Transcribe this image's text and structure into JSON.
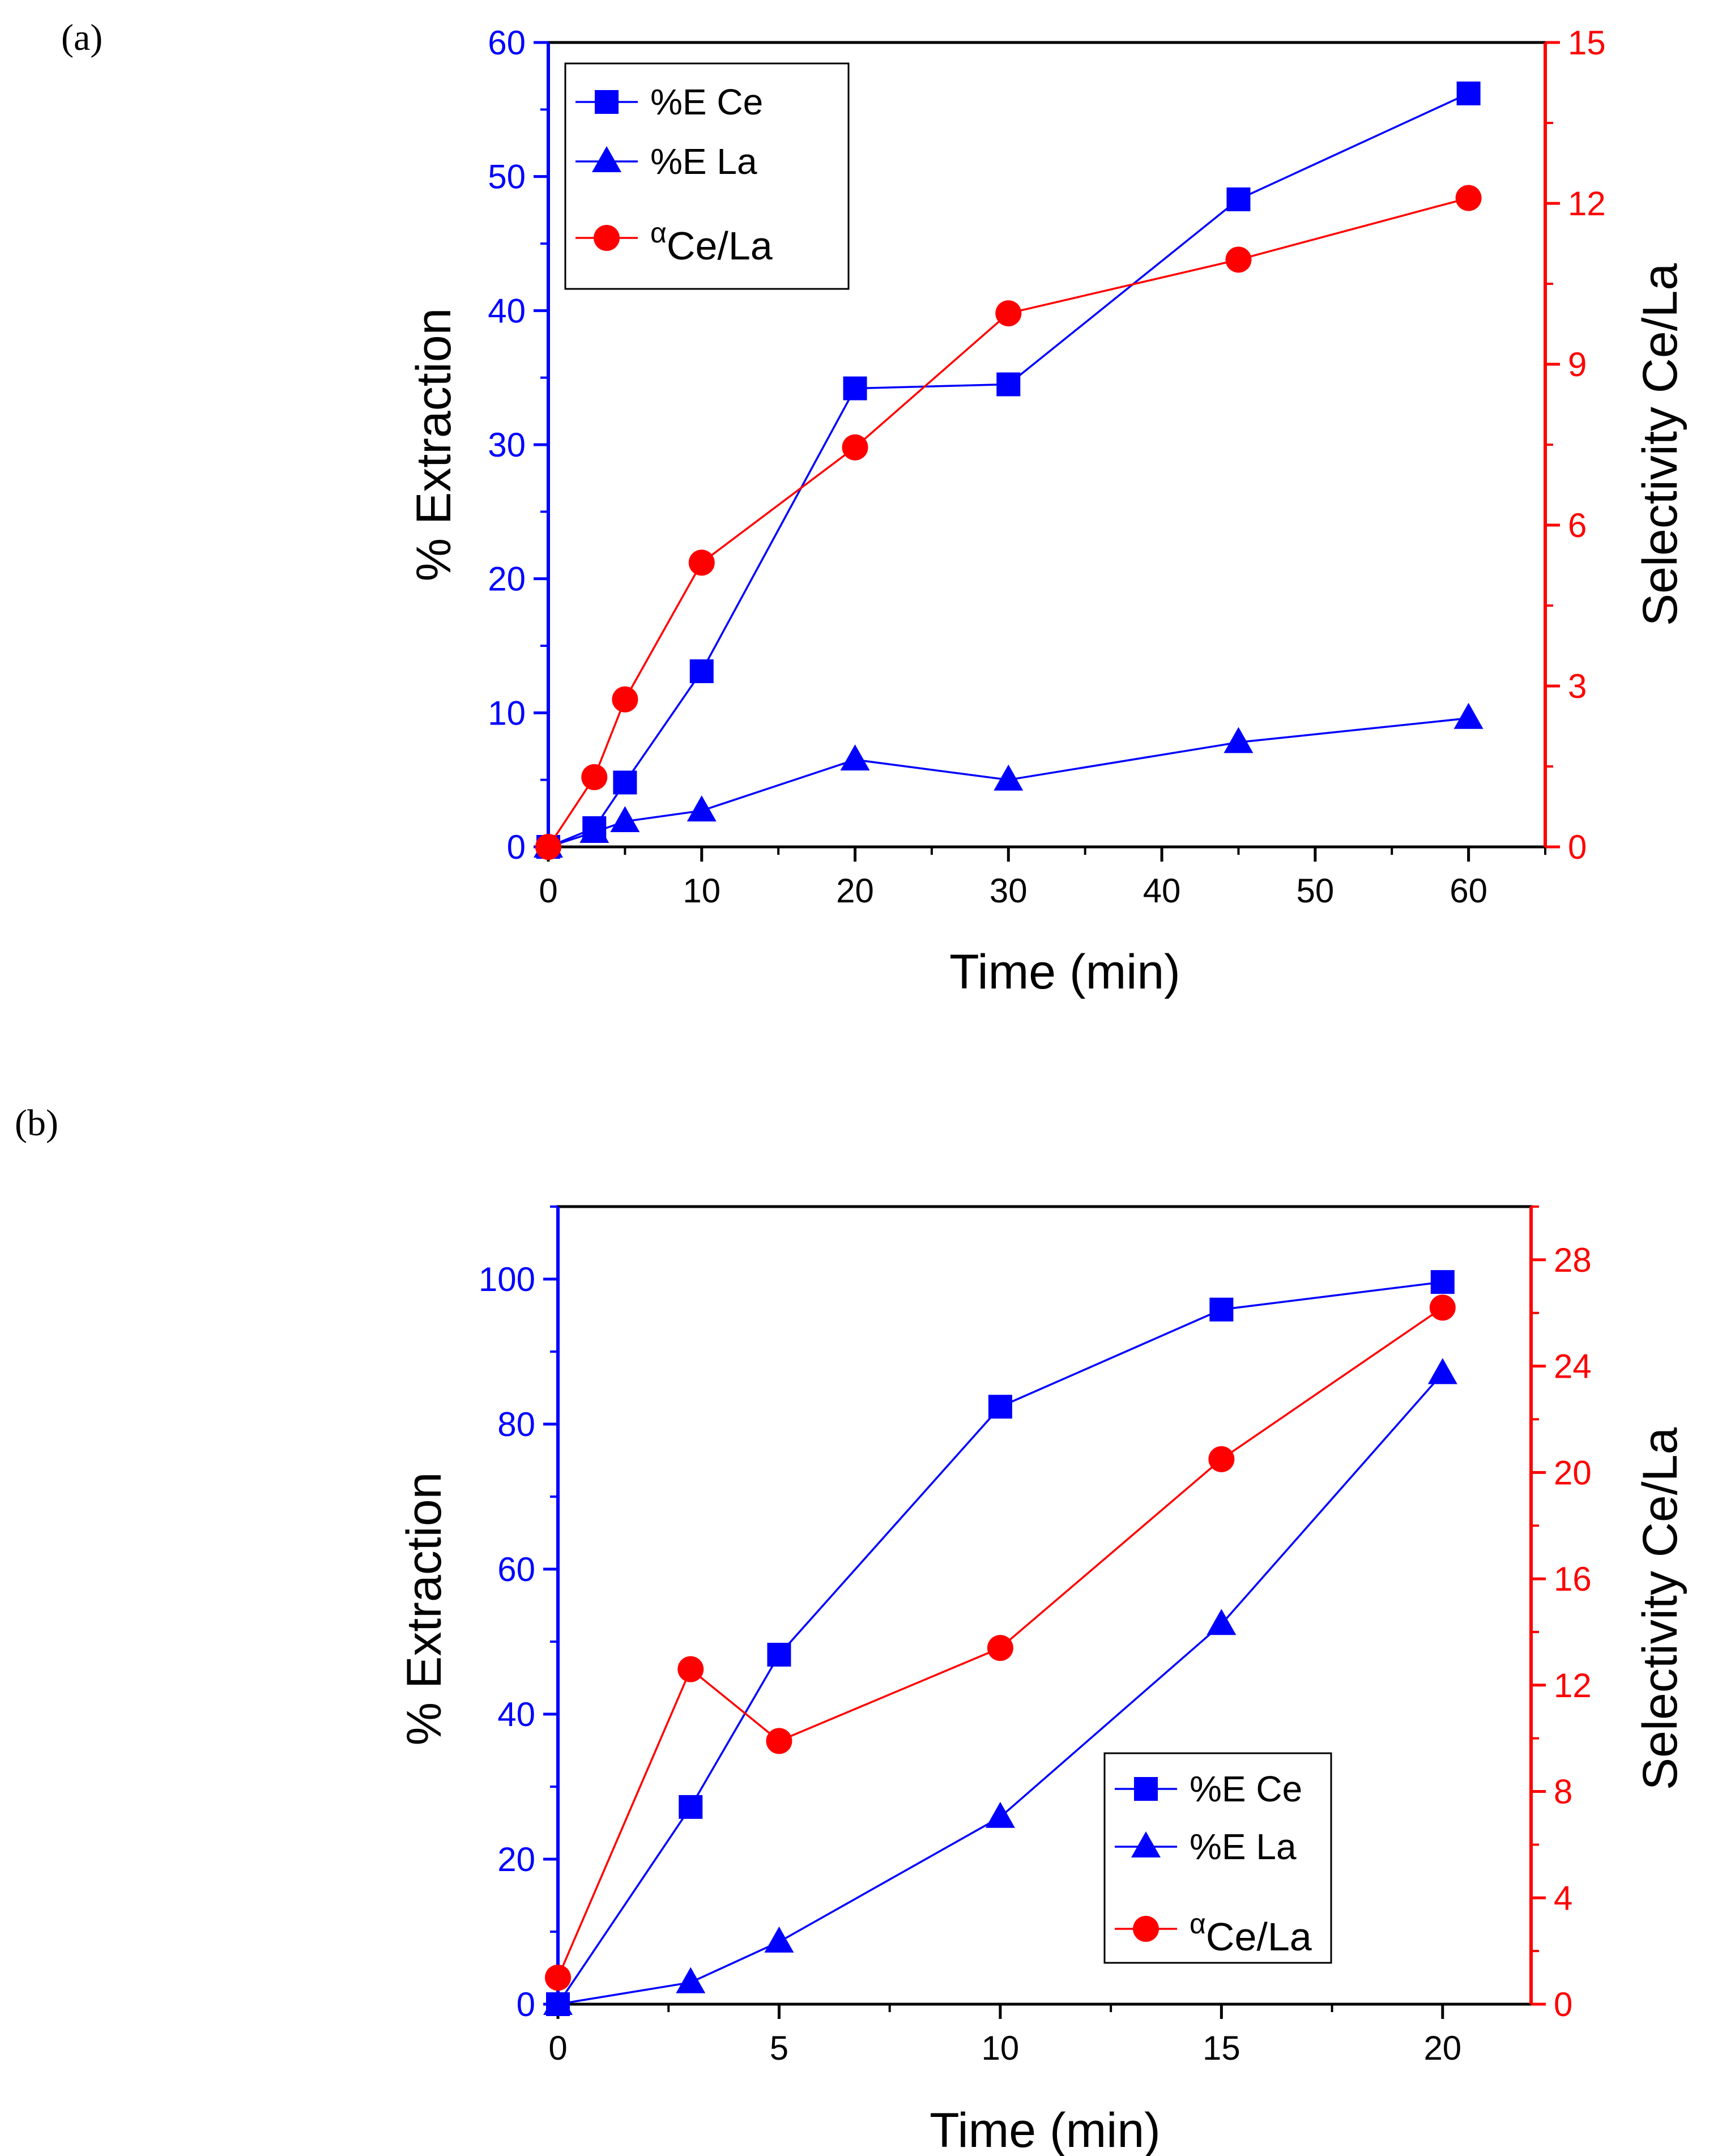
{
  "panels": [
    "(a)",
    "(b)"
  ],
  "colors": {
    "primary": "#0000ff",
    "secondary": "#ff0000",
    "axis": "#000000"
  },
  "chart_data": [
    {
      "type": "line",
      "label": "(a)",
      "xlabel": "Time (min)",
      "ylabel": "% Extraction",
      "y2label": "Selectivity Ce/La",
      "xlim": [
        0,
        65
      ],
      "ylim": [
        0,
        60
      ],
      "y2lim": [
        0,
        15
      ],
      "xticks": [
        0,
        10,
        20,
        30,
        40,
        50,
        60
      ],
      "yticks": [
        0,
        10,
        20,
        30,
        40,
        50,
        60
      ],
      "y2ticks": [
        0,
        3,
        6,
        9,
        12,
        15
      ],
      "legend_position": "top-left",
      "series": [
        {
          "name": "%E Ce",
          "axis": "left",
          "marker": "square",
          "color": "#0000ff",
          "x": [
            0,
            3,
            5,
            10,
            20,
            30,
            45,
            60
          ],
          "y": [
            0,
            1.4,
            4.8,
            13.1,
            34.2,
            34.5,
            48.3,
            56.2
          ]
        },
        {
          "name": "%E La",
          "axis": "left",
          "marker": "triangle",
          "color": "#0000ff",
          "x": [
            0,
            3,
            5,
            10,
            20,
            30,
            45,
            60
          ],
          "y": [
            0,
            1.1,
            1.9,
            2.7,
            6.5,
            5.0,
            7.8,
            9.6
          ]
        },
        {
          "name": "α",
          "subscript": "Ce/La",
          "axis": "right",
          "marker": "circle",
          "color": "#ff0000",
          "x": [
            0,
            3,
            5,
            10,
            20,
            30,
            45,
            60
          ],
          "y": [
            0,
            1.3,
            2.75,
            5.3,
            7.45,
            9.95,
            10.95,
            12.1
          ]
        }
      ]
    },
    {
      "type": "line",
      "label": "(b)",
      "xlabel": "Time (min)",
      "ylabel": "% Extraction",
      "y2label": "Selectivity Ce/La",
      "xlim": [
        0,
        22
      ],
      "ylim": [
        0,
        110
      ],
      "y2lim": [
        0,
        30
      ],
      "xticks": [
        0,
        5,
        10,
        15,
        20
      ],
      "yticks": [
        0,
        20,
        40,
        60,
        80,
        100
      ],
      "y2ticks": [
        0,
        4,
        8,
        12,
        16,
        20,
        24,
        28
      ],
      "legend_position": "bottom-right",
      "series": [
        {
          "name": "%E Ce",
          "axis": "left",
          "marker": "square",
          "color": "#0000ff",
          "x": [
            0,
            3,
            5,
            10,
            15,
            20
          ],
          "y": [
            0,
            27.2,
            48.2,
            82.4,
            95.8,
            99.6
          ]
        },
        {
          "name": "%E La",
          "axis": "left",
          "marker": "triangle",
          "color": "#0000ff",
          "x": [
            0,
            3,
            5,
            10,
            15,
            20
          ],
          "y": [
            0,
            3.0,
            8.6,
            25.8,
            52.4,
            87.0
          ]
        },
        {
          "name": "α",
          "subscript": "Ce/La",
          "axis": "right",
          "marker": "circle",
          "color": "#ff0000",
          "x": [
            0,
            3,
            5,
            10,
            15,
            20
          ],
          "y": [
            1.0,
            12.6,
            9.9,
            13.4,
            20.5,
            26.2
          ]
        }
      ]
    }
  ]
}
